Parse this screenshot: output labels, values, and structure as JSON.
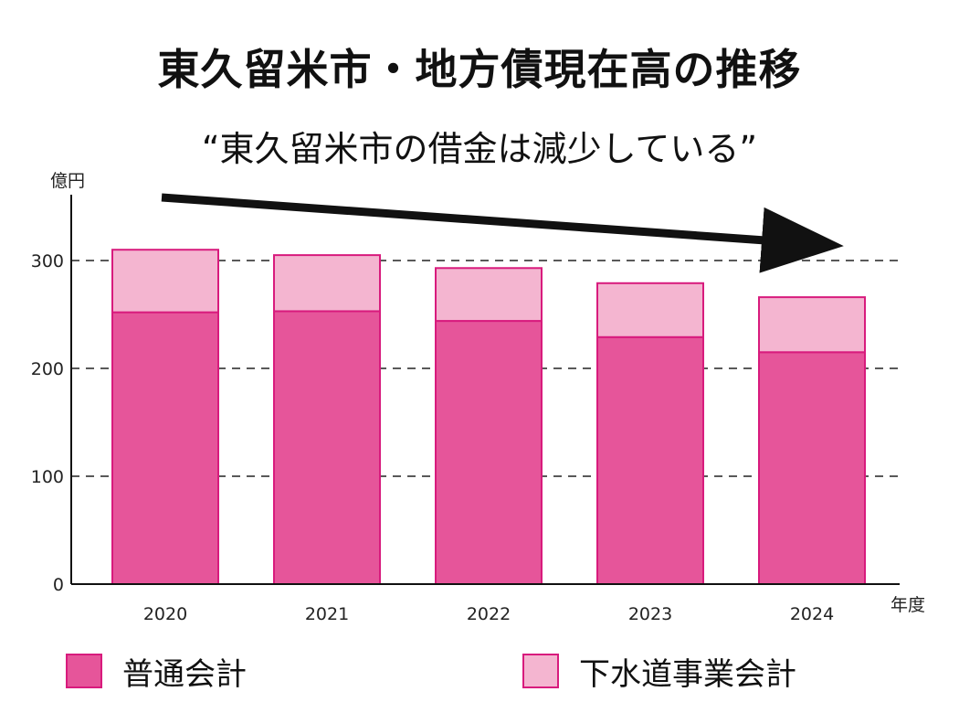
{
  "header": {
    "title": "東久留米市・地方債現在高の推移",
    "subtitle": "“東久留米市の借金は減少している”"
  },
  "colors": {
    "general": "#e6559a",
    "sewer": "#f4b5d0",
    "border": "#d81b7d",
    "axis": "#111111"
  },
  "chart_data": {
    "type": "bar",
    "stacked": true,
    "categories": [
      "2020",
      "2021",
      "2022",
      "2023",
      "2024"
    ],
    "series": [
      {
        "name": "普通会計",
        "values": [
          252,
          253,
          244,
          229,
          215
        ]
      },
      {
        "name": "下水道事業会計",
        "values": [
          58,
          52,
          49,
          50,
          51
        ]
      }
    ],
    "ylabel": "億円",
    "xlabel": "年度",
    "ylim": [
      0,
      350
    ],
    "yticks": [
      0,
      100,
      200,
      300
    ],
    "grid": "dashed horizontal at ticks",
    "legend_position": "bottom"
  }
}
